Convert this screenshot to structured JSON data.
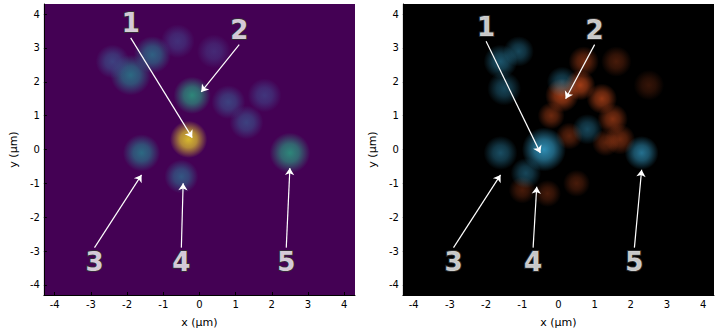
{
  "chart_data": [
    {
      "type": "scatter",
      "xlabel": "x (µm)",
      "ylabel": "y (µm)",
      "xlim": [
        -4.3,
        4.3
      ],
      "ylim": [
        -4.3,
        4.3
      ],
      "xticks": [
        -4,
        -3,
        -2,
        -1,
        0,
        1,
        2,
        3,
        4
      ],
      "yticks": [
        -4,
        -3,
        -2,
        -1,
        0,
        1,
        2,
        3,
        4
      ],
      "color_range": [
        0,
        1
      ],
      "series": [
        {
          "x": [
            -1.9,
            -1.3,
            -2.4,
            -0.6,
            0.8,
            1.3,
            1.8,
            0.4,
            -1.6,
            -0.5,
            -0.2,
            2.5,
            -0.3
          ],
          "y": [
            2.2,
            2.8,
            2.6,
            3.2,
            1.4,
            0.8,
            1.6,
            2.9,
            -0.1,
            -0.8,
            1.6,
            -0.1,
            0.3
          ],
          "intensity": [
            0.45,
            0.4,
            0.25,
            0.18,
            0.25,
            0.25,
            0.2,
            0.15,
            0.45,
            0.35,
            0.6,
            0.6,
            1.0
          ],
          "size": [
            1.2,
            1.1,
            1.0,
            1.0,
            1.0,
            1.0,
            1.0,
            1.0,
            1.1,
            1.0,
            1.1,
            1.2,
            1.1
          ]
        }
      ],
      "annotations": [
        {
          "text": "1",
          "from": [
            -1.9,
            3.3
          ],
          "to": [
            -0.2,
            0.35
          ]
        },
        {
          "text": "2",
          "from": [
            1.1,
            3.1
          ],
          "to": [
            0.05,
            1.7
          ]
        },
        {
          "text": "3",
          "from": [
            -2.9,
            -2.9
          ],
          "to": [
            -1.6,
            -0.75
          ]
        },
        {
          "text": "4",
          "from": [
            -0.5,
            -2.9
          ],
          "to": [
            -0.45,
            -1.0
          ]
        },
        {
          "text": "5",
          "from": [
            2.4,
            -2.9
          ],
          "to": [
            2.5,
            -0.55
          ]
        }
      ]
    },
    {
      "type": "scatter",
      "xlabel": "x (µm)",
      "ylabel": "y (µm)",
      "xlim": [
        -4.3,
        4.3
      ],
      "ylim": [
        -4.3,
        4.3
      ],
      "xticks": [
        -4,
        -3,
        -2,
        -1,
        0,
        1,
        2,
        3,
        4
      ],
      "yticks": [
        -4,
        -3,
        -2,
        -1,
        0,
        1,
        2,
        3,
        4
      ],
      "color_range": [
        0,
        1
      ],
      "series": [
        {
          "color": "#e0541f",
          "x": [
            0.1,
            0.6,
            1.2,
            1.5,
            1.7,
            1.3,
            -0.2,
            0.3,
            -1.0,
            -0.3,
            0.5,
            1.6,
            2.5,
            0.7
          ],
          "y": [
            1.6,
            1.9,
            1.5,
            0.9,
            0.3,
            0.2,
            1.0,
            0.4,
            -1.2,
            -1.3,
            -1.0,
            2.6,
            1.9,
            2.6
          ],
          "intensity": [
            0.9,
            0.9,
            0.8,
            0.7,
            0.6,
            0.5,
            0.6,
            0.5,
            0.4,
            0.4,
            0.4,
            0.4,
            0.3,
            0.6
          ],
          "size": [
            1.0,
            0.9,
            0.9,
            0.9,
            0.9,
            0.8,
            0.8,
            0.8,
            0.8,
            0.8,
            0.8,
            0.9,
            0.9,
            0.9
          ]
        },
        {
          "color": "#3ab0e0",
          "x": [
            -1.6,
            -1.1,
            -1.5,
            -0.4,
            -1.6,
            -0.9,
            0.8,
            2.3,
            0.1
          ],
          "y": [
            2.6,
            2.9,
            1.8,
            0.0,
            -0.1,
            -0.7,
            0.6,
            -0.1,
            2.0
          ],
          "intensity": [
            0.6,
            0.5,
            0.5,
            1.0,
            0.55,
            0.5,
            0.5,
            0.8,
            0.5
          ],
          "size": [
            1.0,
            0.9,
            1.0,
            1.3,
            1.0,
            0.9,
            0.9,
            1.0,
            0.9
          ]
        }
      ],
      "annotations": [
        {
          "text": "1",
          "from": [
            -2.0,
            3.2
          ],
          "to": [
            -0.5,
            -0.1
          ]
        },
        {
          "text": "2",
          "from": [
            1.0,
            3.1
          ],
          "to": [
            0.2,
            1.5
          ]
        },
        {
          "text": "3",
          "from": [
            -2.9,
            -2.9
          ],
          "to": [
            -1.6,
            -0.75
          ]
        },
        {
          "text": "4",
          "from": [
            -0.7,
            -2.9
          ],
          "to": [
            -0.6,
            -1.1
          ]
        },
        {
          "text": "5",
          "from": [
            2.1,
            -2.9
          ],
          "to": [
            2.3,
            -0.6
          ]
        }
      ]
    }
  ]
}
